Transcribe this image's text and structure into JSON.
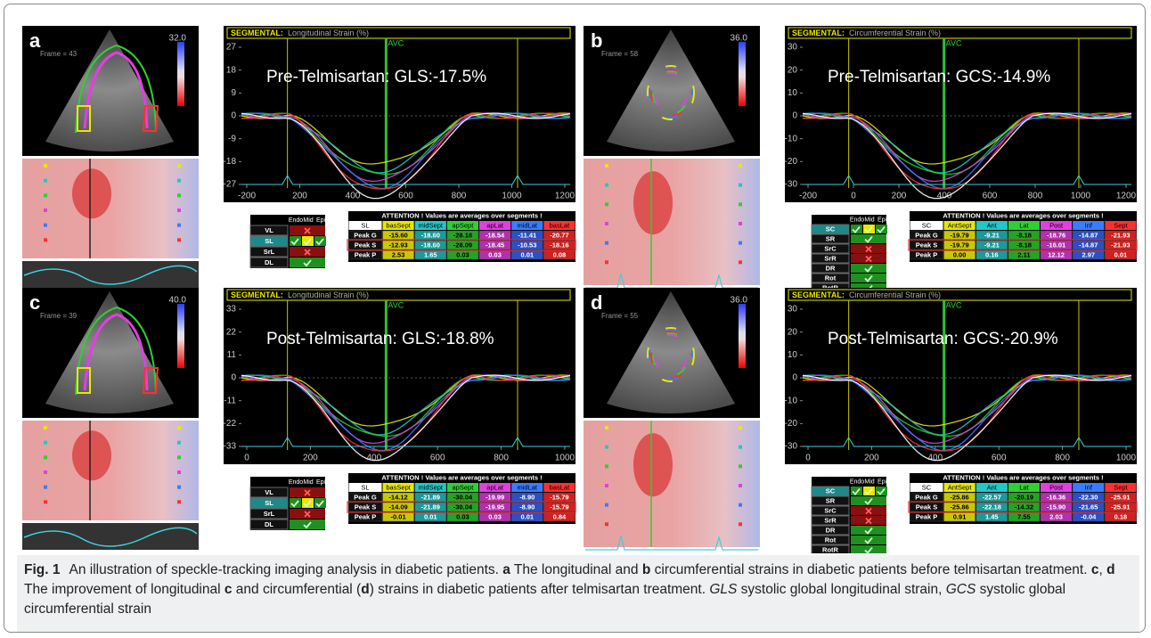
{
  "panels": [
    {
      "letter": "a",
      "frame": "Frame = 43",
      "scale_max": "32.0",
      "chart_title_prefix": "SEGMENTAL:",
      "chart_title": "Longitudinal Strain (%)",
      "avc": "AVC",
      "annotation": "Pre-Telmisartan: GLS:-17.5%",
      "yticks": [
        "27",
        "18",
        "9",
        "0",
        "-9",
        "-18",
        "-27"
      ],
      "xticks": [
        "-200",
        "200",
        "400",
        "600",
        "800",
        "1000",
        "1200"
      ],
      "mode_table": {
        "header": [
          "Endo",
          "Mid",
          "Epi"
        ],
        "rows": [
          "VL",
          "SL",
          "SrL",
          "DL"
        ]
      },
      "attention": {
        "title": "ATTENTION !  Values are averages over segments !",
        "columns": [
          "SL",
          "basSept",
          "midSept",
          "apSept",
          "apLat",
          "midLat",
          "basLat"
        ],
        "rows": [
          [
            "Peak G",
            "-15.60",
            "-18.60",
            "-28.18",
            "-18.54",
            "-11.41",
            "-20.77"
          ],
          [
            "Peak S",
            "-12.93",
            "-18.60",
            "-28.09",
            "-18.45",
            "-10.53",
            "-18.16"
          ],
          [
            "Peak P",
            "2.53",
            "1.65",
            "0.03",
            "0.03",
            "0.01",
            "0.08"
          ]
        ]
      }
    },
    {
      "letter": "b",
      "frame": "Frame = 58",
      "scale_max": "36.0",
      "chart_title_prefix": "SEGMENTAL:",
      "chart_title": "Circumferential Strain (%)",
      "avc": "AVC",
      "annotation": "Pre-Telmisartan: GCS:-14.9%",
      "yticks": [
        "30",
        "20",
        "10",
        "0",
        "-10",
        "-20",
        "-30"
      ],
      "xticks": [
        "-200",
        "0",
        "200",
        "400",
        "600",
        "800",
        "1000",
        "1200"
      ],
      "mode_table": {
        "header": [
          "Endo",
          "Mid",
          "Epi"
        ],
        "rows": [
          "SC",
          "SR",
          "SrC",
          "SrR",
          "DR",
          "Rot",
          "RotR"
        ]
      },
      "attention": {
        "title": "ATTENTION !  Values are averages over segments !",
        "columns": [
          "SC",
          "AntSept",
          "Ant",
          "Lat",
          "Post",
          "Inf",
          "Sept"
        ],
        "rows": [
          [
            "Peak G",
            "-19.79",
            "-9.21",
            "-8.18",
            "-18.76",
            "-14.87",
            "-21.93"
          ],
          [
            "Peak S",
            "-19.79",
            "-9.21",
            "-8.18",
            "-16.01",
            "-14.87",
            "-21.93"
          ],
          [
            "Peak P",
            "0.00",
            "0.16",
            "2.11",
            "12.12",
            "2.97",
            "0.01"
          ]
        ]
      }
    },
    {
      "letter": "c",
      "frame": "Frame = 39",
      "scale_max": "40.0",
      "chart_title_prefix": "SEGMENTAL:",
      "chart_title": "Longitudinal Strain (%)",
      "avc": "AVC",
      "annotation": "Post-Telmisartan: GLS:-18.8%",
      "yticks": [
        "33",
        "22",
        "11",
        "0",
        "-11",
        "-22",
        "-33"
      ],
      "xticks": [
        "0",
        "200",
        "400",
        "600",
        "800",
        "1000"
      ],
      "mode_table": {
        "header": [
          "Endo",
          "Mid",
          "Epi"
        ],
        "rows": [
          "VL",
          "SL",
          "SrL",
          "DL"
        ]
      },
      "attention": {
        "title": "ATTENTION !  Values are averages over segments !",
        "columns": [
          "SL",
          "basSept",
          "midSept",
          "apSept",
          "apLat",
          "midLat",
          "basLat"
        ],
        "rows": [
          [
            "Peak G",
            "-14.12",
            "-21.89",
            "-30.04",
            "-19.99",
            "-8.90",
            "-15.79"
          ],
          [
            "Peak S",
            "-14.09",
            "-21.89",
            "-30.04",
            "-19.95",
            "-8.90",
            "-15.79"
          ],
          [
            "Peak P",
            "-0.01",
            "0.01",
            "0.03",
            "0.03",
            "0.01",
            "0.84"
          ]
        ]
      }
    },
    {
      "letter": "d",
      "frame": "Frame = 55",
      "scale_max": "36.0",
      "chart_title_prefix": "SEGMENTAL:",
      "chart_title": "Circumferential Strain (%)",
      "avc": "AVC",
      "annotation": "Post-Telmisartan: GCS:-20.9%",
      "yticks": [
        "30",
        "20",
        "10",
        "0",
        "-10",
        "-20",
        "-30"
      ],
      "xticks": [
        "0",
        "200",
        "400",
        "600",
        "800",
        "1000"
      ],
      "mode_table": {
        "header": [
          "Endo",
          "Mid",
          "Epi"
        ],
        "rows": [
          "SC",
          "SR",
          "SrC",
          "SrR",
          "DR",
          "Rot",
          "RotR"
        ]
      },
      "attention": {
        "title": "ATTENTION !  Values are averages over segments !",
        "columns": [
          "SC",
          "AntSept",
          "Ant",
          "Lat",
          "Post",
          "Inf",
          "Sept"
        ],
        "rows": [
          [
            "Peak G",
            "-25.86",
            "-22.57",
            "-20.19",
            "-16.36",
            "-22.30",
            "-25.91"
          ],
          [
            "Peak S",
            "-25.86",
            "-22.18",
            "-14.32",
            "-15.90",
            "-21.65",
            "-25.91"
          ],
          [
            "Peak P",
            "0.91",
            "1.45",
            "7.55",
            "2.03",
            "-0.04",
            "0.18"
          ]
        ]
      }
    }
  ],
  "caption": {
    "label": "Fig. 1",
    "runs": [
      {
        "text": "An illustration of speckle-tracking imaging analysis in diabetic patients. ",
        "style": "normal"
      },
      {
        "text": "a",
        "style": "bold"
      },
      {
        "text": " The longitudinal and ",
        "style": "normal"
      },
      {
        "text": "b",
        "style": "bold"
      },
      {
        "text": " circumferential strains in diabetic patients before telmisartan treatment. ",
        "style": "normal"
      },
      {
        "text": "c",
        "style": "bold"
      },
      {
        "text": ", ",
        "style": "normal"
      },
      {
        "text": "d",
        "style": "bold"
      },
      {
        "text": " The improvement of longitudinal ",
        "style": "normal"
      },
      {
        "text": "c",
        "style": "bold"
      },
      {
        "text": " and circumferential (",
        "style": "normal"
      },
      {
        "text": "d",
        "style": "bold"
      },
      {
        "text": ") strains in diabetic patients after telmisartan treatment. ",
        "style": "normal"
      },
      {
        "text": "GLS",
        "style": "italic"
      },
      {
        "text": " systolic global longitudinal strain, ",
        "style": "normal"
      },
      {
        "text": "GCS",
        "style": "italic"
      },
      {
        "text": " systolic global circumferential strain",
        "style": "normal"
      }
    ]
  }
}
